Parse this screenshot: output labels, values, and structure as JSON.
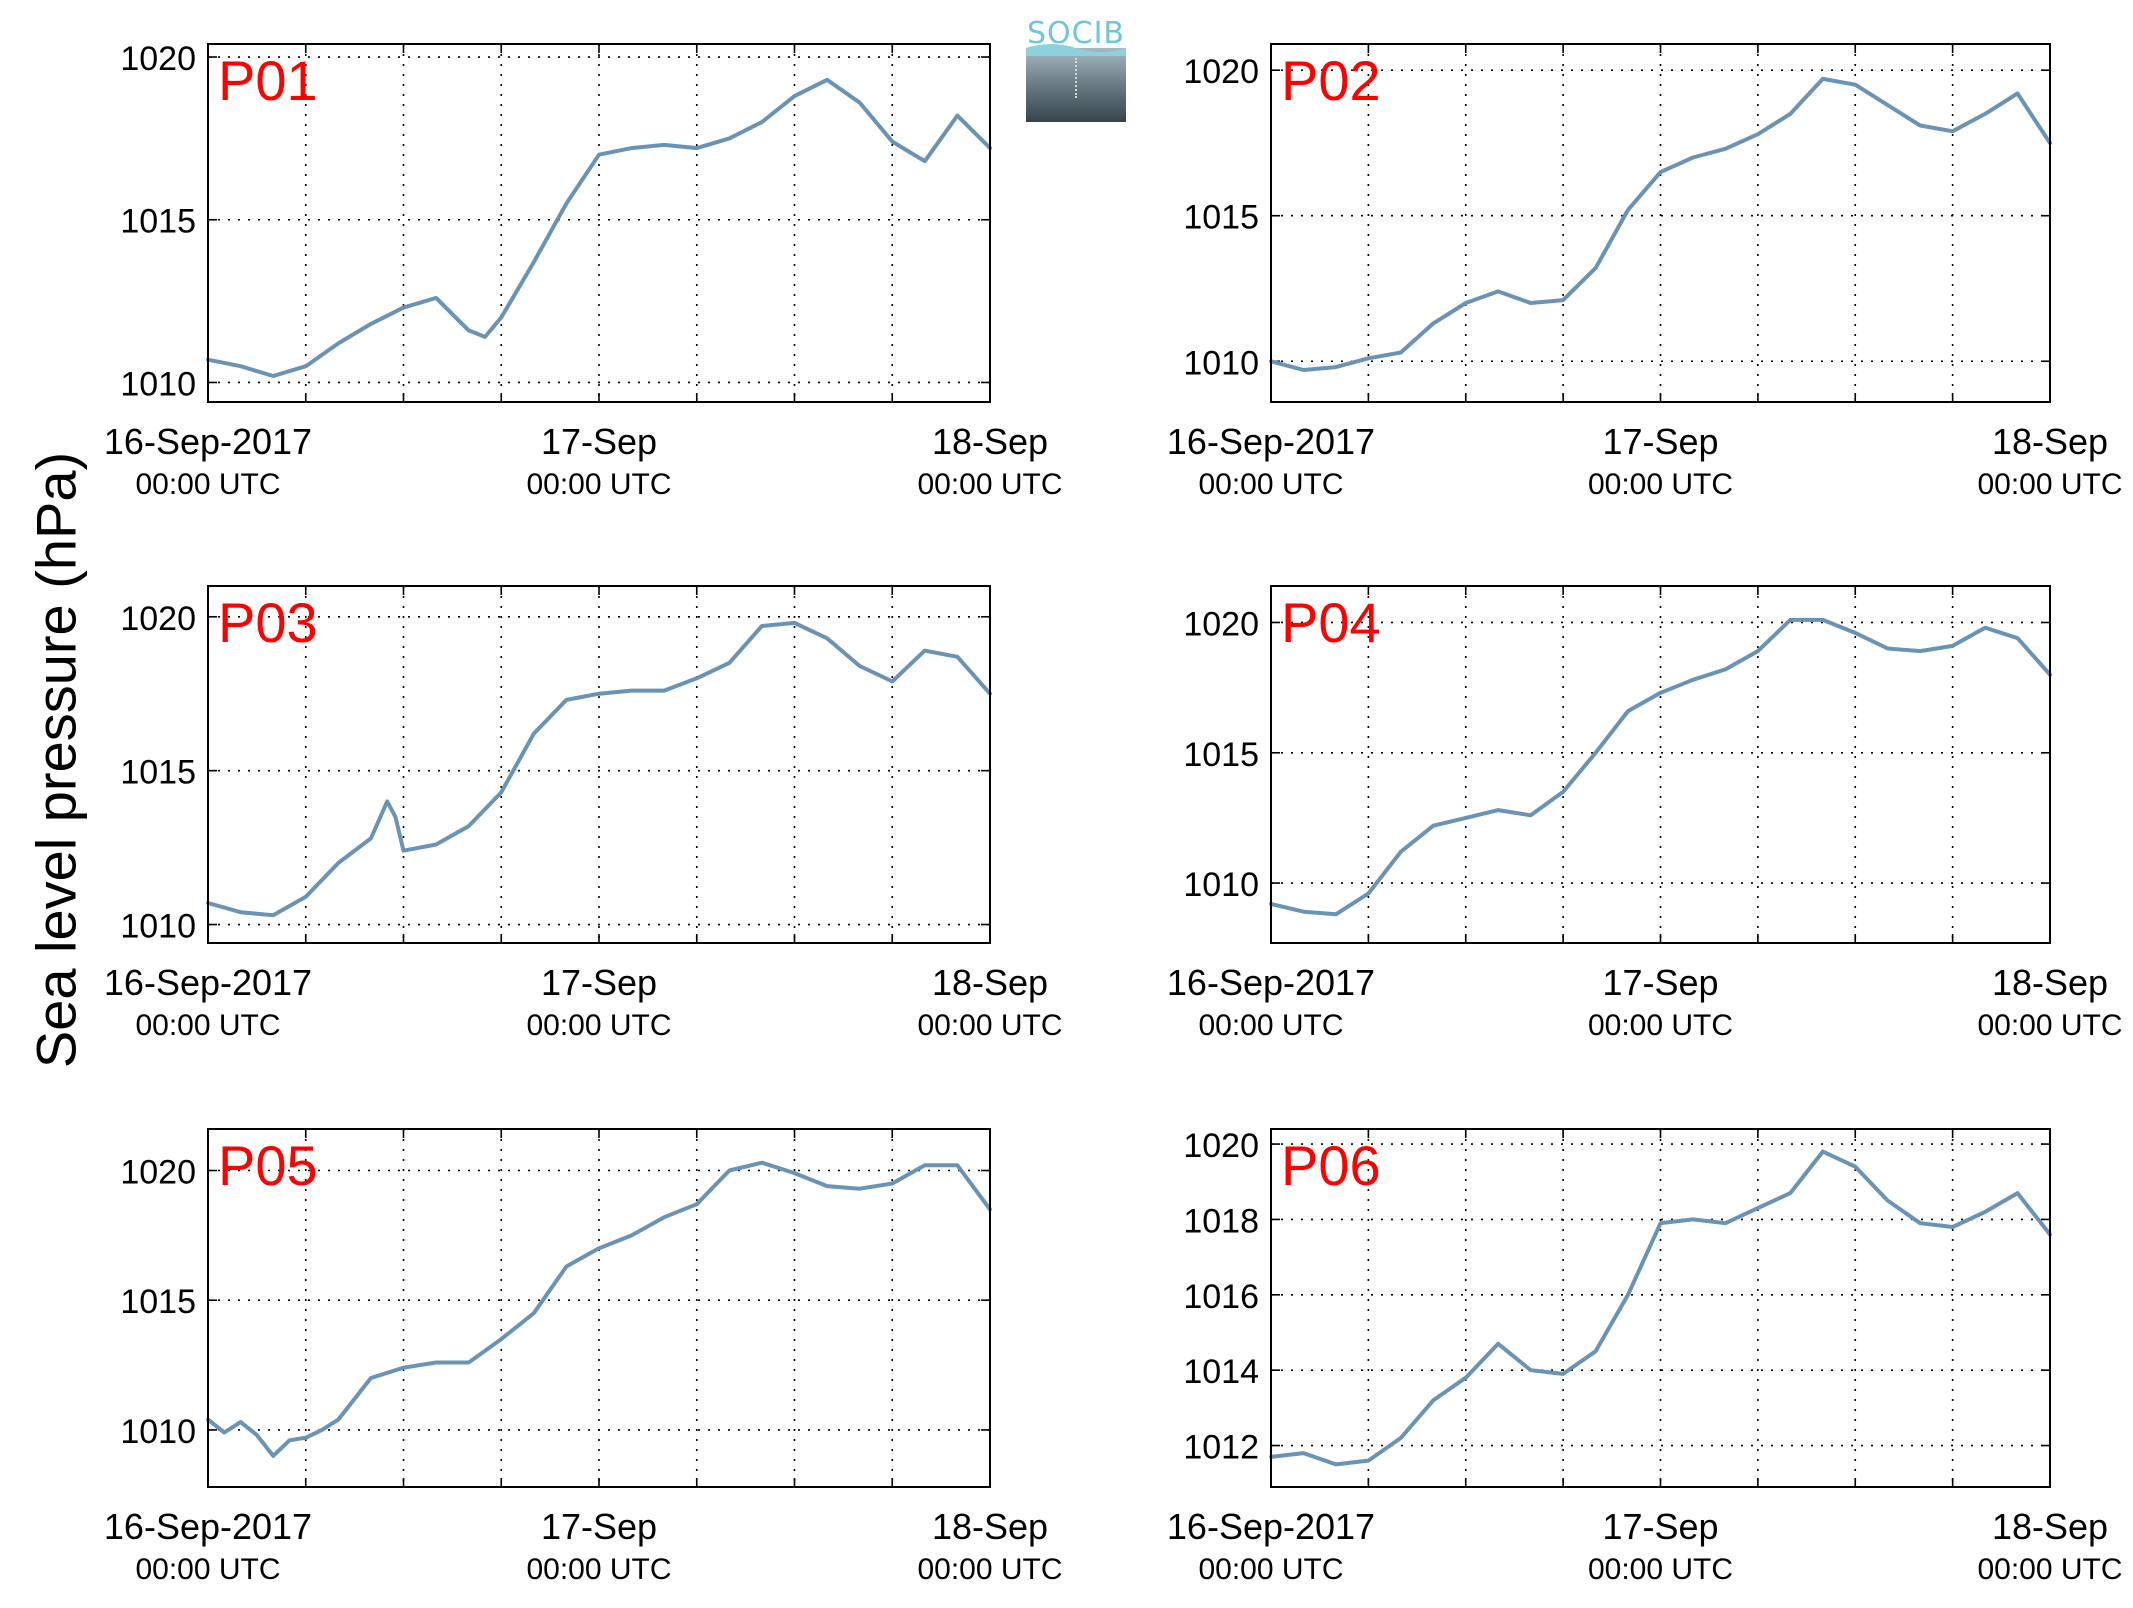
{
  "figure": {
    "ylabel": "Sea level pressure (hPa)",
    "logo_text": "SOCIB",
    "line_color": "#6a93b6",
    "label_color": "#ff0000"
  },
  "chart_data": [
    {
      "type": "line",
      "title": "P01",
      "xlim": [
        "16-Sep-2017 00:00",
        "18-Sep-2017 00:00"
      ],
      "x_ticks": [
        {
          "label": "16-Sep-2017",
          "sub": "00:00 UTC"
        },
        {
          "label": "17-Sep",
          "sub": "00:00 UTC"
        },
        {
          "label": "18-Sep",
          "sub": "00:00 UTC"
        }
      ],
      "x_hours": [
        0,
        2,
        4,
        6,
        8,
        10,
        12,
        14,
        16,
        17,
        18,
        20,
        22,
        24,
        26,
        28,
        30,
        32,
        34,
        36,
        38,
        40,
        42,
        44,
        46,
        48
      ],
      "ylim": [
        1009.4,
        1020.4
      ],
      "yticks": [
        1010,
        1015,
        1020
      ],
      "grid": true,
      "series": [
        {
          "values": [
            1010.7,
            1010.5,
            1010.2,
            1010.5,
            1011.2,
            1011.8,
            1012.3,
            1012.6,
            1011.6,
            1011.4,
            1012.0,
            1013.7,
            1015.5,
            1017.0,
            1017.2,
            1017.3,
            1017.2,
            1017.5,
            1018.0,
            1018.8,
            1019.3,
            1018.6,
            1017.4,
            1016.8,
            1018.2,
            1017.2
          ]
        }
      ]
    },
    {
      "type": "line",
      "title": "P02",
      "xlim": [
        "16-Sep-2017 00:00",
        "18-Sep-2017 00:00"
      ],
      "x_ticks": [
        {
          "label": "16-Sep-2017",
          "sub": "00:00 UTC"
        },
        {
          "label": "17-Sep",
          "sub": "00:00 UTC"
        },
        {
          "label": "18-Sep",
          "sub": "00:00 UTC"
        }
      ],
      "x_hours": [
        0,
        2,
        4,
        6,
        8,
        10,
        12,
        14,
        16,
        18,
        20,
        22,
        24,
        26,
        28,
        30,
        32,
        34,
        36,
        38,
        40,
        42,
        44,
        46,
        48
      ],
      "ylim": [
        1008.6,
        1020.9
      ],
      "yticks": [
        1010,
        1015,
        1020
      ],
      "grid": true,
      "series": [
        {
          "values": [
            1010.0,
            1009.7,
            1009.8,
            1010.1,
            1010.3,
            1011.3,
            1012.0,
            1012.4,
            1012.0,
            1012.1,
            1013.2,
            1015.2,
            1016.5,
            1017.0,
            1017.3,
            1017.8,
            1018.5,
            1019.7,
            1019.5,
            1018.8,
            1018.1,
            1017.9,
            1018.5,
            1019.2,
            1017.5
          ]
        }
      ]
    },
    {
      "type": "line",
      "title": "P03",
      "xlim": [
        "16-Sep-2017 00:00",
        "18-Sep-2017 00:00"
      ],
      "x_ticks": [
        {
          "label": "16-Sep-2017",
          "sub": "00:00 UTC"
        },
        {
          "label": "17-Sep",
          "sub": "00:00 UTC"
        },
        {
          "label": "18-Sep",
          "sub": "00:00 UTC"
        }
      ],
      "x_hours": [
        0,
        2,
        4,
        6,
        8,
        10,
        11,
        11.5,
        12,
        14,
        16,
        18,
        20,
        22,
        24,
        26,
        28,
        30,
        32,
        34,
        36,
        38,
        40,
        42,
        44,
        46,
        48
      ],
      "ylim": [
        1009.4,
        1021.0
      ],
      "yticks": [
        1010,
        1015,
        1020
      ],
      "grid": true,
      "series": [
        {
          "values": [
            1010.7,
            1010.4,
            1010.3,
            1010.9,
            1012.0,
            1012.8,
            1014.0,
            1013.5,
            1012.4,
            1012.6,
            1013.2,
            1014.3,
            1016.2,
            1017.3,
            1017.5,
            1017.6,
            1017.6,
            1018.0,
            1018.5,
            1019.7,
            1019.8,
            1019.3,
            1018.4,
            1017.9,
            1018.9,
            1018.7,
            1017.5
          ]
        }
      ]
    },
    {
      "type": "line",
      "title": "P04",
      "xlim": [
        "16-Sep-2017 00:00",
        "18-Sep-2017 00:00"
      ],
      "x_ticks": [
        {
          "label": "16-Sep-2017",
          "sub": "00:00 UTC"
        },
        {
          "label": "17-Sep",
          "sub": "00:00 UTC"
        },
        {
          "label": "18-Sep",
          "sub": "00:00 UTC"
        }
      ],
      "x_hours": [
        0,
        2,
        4,
        6,
        8,
        10,
        12,
        14,
        16,
        18,
        20,
        22,
        24,
        26,
        28,
        30,
        32,
        34,
        36,
        38,
        40,
        42,
        44,
        46,
        48
      ],
      "ylim": [
        1007.7,
        1021.4
      ],
      "yticks": [
        1010,
        1015,
        1020
      ],
      "grid": true,
      "series": [
        {
          "values": [
            1009.2,
            1008.9,
            1008.8,
            1009.6,
            1011.2,
            1012.2,
            1012.5,
            1012.8,
            1012.6,
            1013.5,
            1015.0,
            1016.6,
            1017.3,
            1017.8,
            1018.2,
            1018.9,
            1020.1,
            1020.1,
            1019.6,
            1019.0,
            1018.9,
            1019.1,
            1019.8,
            1019.4,
            1018.0
          ]
        }
      ]
    },
    {
      "type": "line",
      "title": "P05",
      "xlim": [
        "16-Sep-2017 00:00",
        "18-Sep-2017 00:00"
      ],
      "x_ticks": [
        {
          "label": "16-Sep-2017",
          "sub": "00:00 UTC"
        },
        {
          "label": "17-Sep",
          "sub": "00:00 UTC"
        },
        {
          "label": "18-Sep",
          "sub": "00:00 UTC"
        }
      ],
      "x_hours": [
        0,
        1,
        2,
        3,
        4,
        5,
        6,
        7,
        8,
        10,
        12,
        14,
        16,
        18,
        20,
        22,
        24,
        26,
        28,
        30,
        32,
        34,
        36,
        38,
        40,
        42,
        44,
        46,
        48
      ],
      "ylim": [
        1007.8,
        1021.6
      ],
      "yticks": [
        1010,
        1015,
        1020
      ],
      "grid": true,
      "series": [
        {
          "values": [
            1010.4,
            1009.9,
            1010.3,
            1009.8,
            1009.0,
            1009.6,
            1009.7,
            1010.0,
            1010.4,
            1012.0,
            1012.4,
            1012.6,
            1012.6,
            1013.5,
            1014.5,
            1016.3,
            1017.0,
            1017.5,
            1018.2,
            1018.7,
            1020.0,
            1020.3,
            1019.9,
            1019.4,
            1019.3,
            1019.5,
            1020.2,
            1020.2,
            1018.5
          ]
        }
      ]
    },
    {
      "type": "line",
      "title": "P06",
      "xlim": [
        "16-Sep-2017 00:00",
        "18-Sep-2017 00:00"
      ],
      "x_ticks": [
        {
          "label": "16-Sep-2017",
          "sub": "00:00 UTC"
        },
        {
          "label": "17-Sep",
          "sub": "00:00 UTC"
        },
        {
          "label": "18-Sep",
          "sub": "00:00 UTC"
        }
      ],
      "x_hours": [
        0,
        2,
        4,
        6,
        8,
        10,
        12,
        14,
        16,
        18,
        20,
        22,
        24,
        26,
        28,
        30,
        32,
        34,
        36,
        38,
        40,
        42,
        44,
        46,
        48
      ],
      "ylim": [
        1010.9,
        1020.4
      ],
      "yticks": [
        1012,
        1014,
        1016,
        1018,
        1020
      ],
      "grid": true,
      "series": [
        {
          "values": [
            1011.7,
            1011.8,
            1011.5,
            1011.6,
            1012.2,
            1013.2,
            1013.8,
            1014.7,
            1014.0,
            1013.9,
            1014.5,
            1016.0,
            1017.9,
            1018.0,
            1017.9,
            1018.3,
            1018.7,
            1019.8,
            1019.4,
            1018.5,
            1017.9,
            1017.8,
            1018.2,
            1018.7,
            1017.6
          ]
        }
      ]
    }
  ]
}
